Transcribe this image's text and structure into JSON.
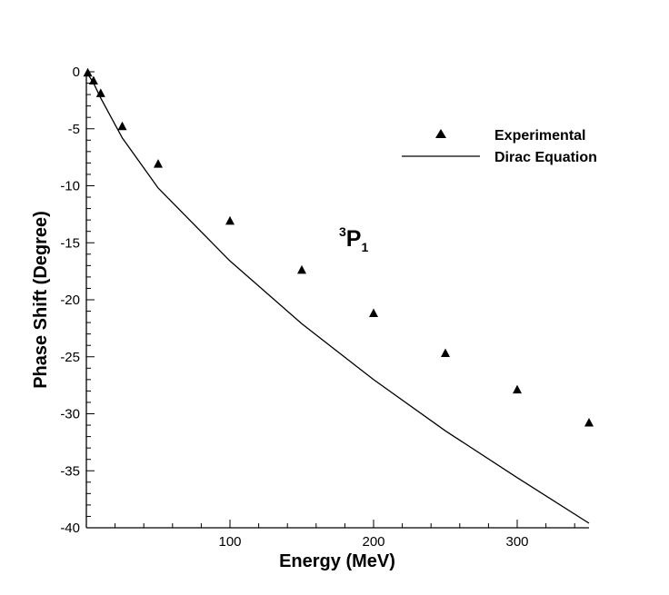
{
  "chart_data": {
    "type": "scatter",
    "title": "",
    "xlabel": "Energy (MeV)",
    "ylabel": "Phase Shift (Degree)",
    "xlim": [
      0,
      350
    ],
    "ylim": [
      -40,
      0
    ],
    "x_ticks": [
      100,
      200,
      300
    ],
    "y_ticks": [
      0,
      -5,
      -10,
      -15,
      -20,
      -25,
      -30,
      -35,
      -40
    ],
    "legend_position": "top-right",
    "annotation": {
      "sup": "3",
      "main": "P",
      "sub": "1"
    },
    "series": [
      {
        "name": "Experimental",
        "type": "scatter",
        "marker": "triangle",
        "color": "#000000",
        "x": [
          1,
          5,
          10,
          25,
          50,
          100,
          150,
          200,
          250,
          300,
          350
        ],
        "y": [
          -0.1,
          -0.8,
          -1.9,
          -4.8,
          -8.1,
          -13.1,
          -17.4,
          -21.2,
          -24.7,
          -27.9,
          -30.8
        ]
      },
      {
        "name": "Dirac Equation",
        "type": "line",
        "color": "#000000",
        "x": [
          0,
          5,
          10,
          25,
          50,
          100,
          150,
          200,
          250,
          300,
          350
        ],
        "y": [
          0,
          -1.0,
          -2.3,
          -5.8,
          -10.2,
          -16.6,
          -22.1,
          -27.0,
          -31.5,
          -35.6,
          -39.6
        ]
      }
    ]
  }
}
